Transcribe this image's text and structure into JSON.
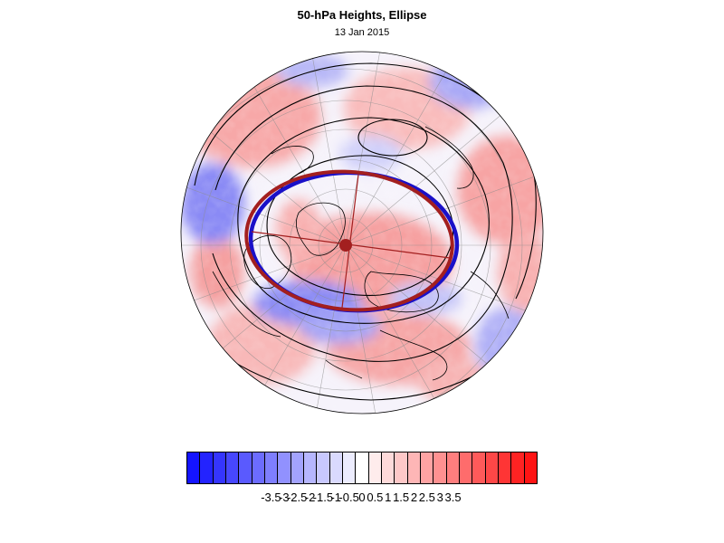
{
  "title": "50-hPa Heights, Ellipse",
  "subtitle": "13 Jan 2015",
  "map": {
    "projection": "north-polar-stereographic",
    "field": "standardized 50-hPa height anomaly",
    "ellipse_colors": {
      "observed": "#1a10c8",
      "fitted": "#a31f1f"
    },
    "contour_color": "#000000"
  },
  "colorbar": {
    "colors": [
      "#1414ff",
      "#2323fe",
      "#3535fe",
      "#4747fe",
      "#5a5afe",
      "#6c6cfe",
      "#7e7efe",
      "#9191fe",
      "#a3a3fe",
      "#b6b6fe",
      "#c8c8fe",
      "#dadafe",
      "#ececfe",
      "#ffffff",
      "#feecec",
      "#fedada",
      "#fec8c8",
      "#feb6b6",
      "#fea3a3",
      "#fe9191",
      "#fe7e7e",
      "#fe6c6c",
      "#fe5a5a",
      "#fe4747",
      "#fe3535",
      "#fe2323",
      "#ff1414"
    ],
    "labels": [
      "-3.5",
      "-3",
      "-2.5",
      "-2",
      "-1.5",
      "-1",
      "-0.5",
      "0",
      "0.5",
      "1",
      "1.5",
      "2",
      "2.5",
      "3",
      "3.5"
    ]
  }
}
